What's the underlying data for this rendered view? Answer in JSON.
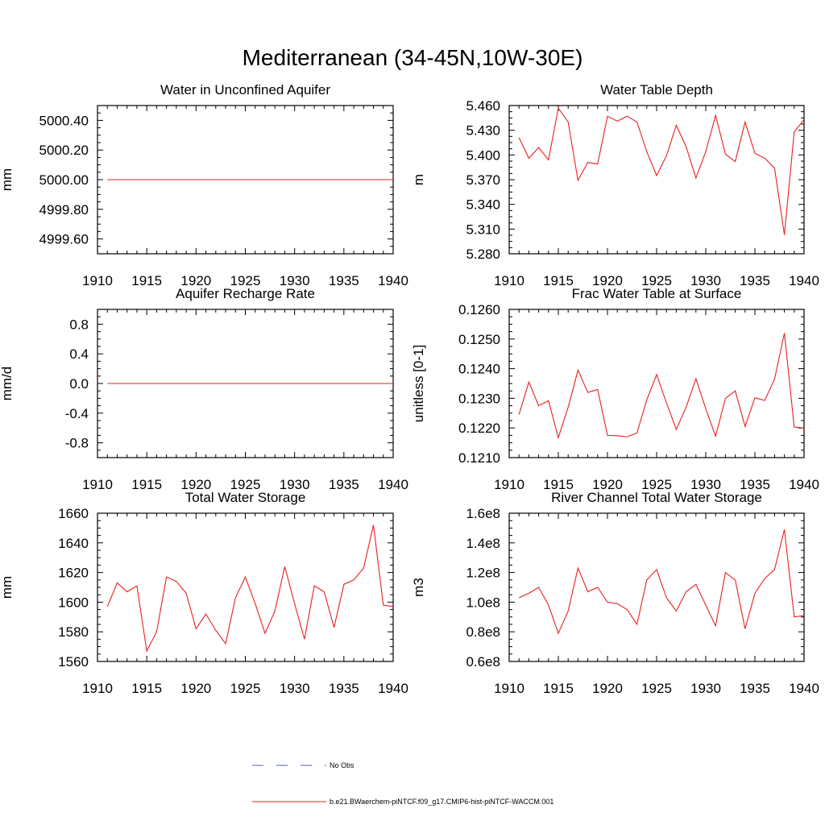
{
  "figure_title": "Mediterranean (34-45N,10W-30E)",
  "legend": [
    {
      "label": "No Obs",
      "color": "#4a5fc4",
      "style": "dashed"
    },
    {
      "label": "b.e21.BWaerchem-piNTCF.f09_g17.CMIP6-hist-piNTCF-WACCM.001",
      "color": "#e8201e",
      "style": "solid"
    }
  ],
  "chart_data": [
    {
      "type": "line",
      "title": "Water in Unconfined Aquifer",
      "ylabel": "mm",
      "xlim": [
        1910,
        1940
      ],
      "ylim": [
        4999.5,
        5000.5
      ],
      "xticks": [
        1910,
        1915,
        1920,
        1925,
        1930,
        1935,
        1940
      ],
      "xtick_labels": [
        "1910",
        "1915",
        "1920",
        "1925",
        "1930",
        "1935",
        "1940"
      ],
      "yticks": [
        4999.6,
        4999.8,
        5000.0,
        5000.2,
        5000.4
      ],
      "ytick_labels": [
        "4999.60",
        "4999.80",
        "5000.00",
        "5000.20",
        "5000.40"
      ],
      "x": [
        1911,
        1912,
        1913,
        1914,
        1915,
        1916,
        1917,
        1918,
        1919,
        1920,
        1921,
        1922,
        1923,
        1924,
        1925,
        1926,
        1927,
        1928,
        1929,
        1930,
        1931,
        1932,
        1933,
        1934,
        1935,
        1936,
        1937,
        1938,
        1939,
        1940
      ],
      "series": [
        {
          "color": "#e8201e",
          "values": [
            5000,
            5000,
            5000,
            5000,
            5000,
            5000,
            5000,
            5000,
            5000,
            5000,
            5000,
            5000,
            5000,
            5000,
            5000,
            5000,
            5000,
            5000,
            5000,
            5000,
            5000,
            5000,
            5000,
            5000,
            5000,
            5000,
            5000,
            5000,
            5000,
            5000
          ]
        }
      ]
    },
    {
      "type": "line",
      "title": "Water Table Depth",
      "ylabel": "m",
      "xlim": [
        1910,
        1940
      ],
      "ylim": [
        5.28,
        5.46
      ],
      "xticks": [
        1910,
        1915,
        1920,
        1925,
        1930,
        1935,
        1940
      ],
      "xtick_labels": [
        "1910",
        "1915",
        "1920",
        "1925",
        "1930",
        "1935",
        "1940"
      ],
      "yticks": [
        5.28,
        5.31,
        5.34,
        5.37,
        5.4,
        5.43,
        5.46
      ],
      "ytick_labels": [
        "5.280",
        "5.310",
        "5.340",
        "5.370",
        "5.400",
        "5.430",
        "5.460"
      ],
      "x": [
        1911,
        1912,
        1913,
        1914,
        1915,
        1916,
        1917,
        1918,
        1919,
        1920,
        1921,
        1922,
        1923,
        1924,
        1925,
        1926,
        1927,
        1928,
        1929,
        1930,
        1931,
        1932,
        1933,
        1934,
        1935,
        1936,
        1937,
        1938,
        1939,
        1940
      ],
      "series": [
        {
          "color": "#e8201e",
          "values": [
            5.421,
            5.396,
            5.409,
            5.394,
            5.457,
            5.44,
            5.369,
            5.391,
            5.389,
            5.447,
            5.441,
            5.447,
            5.44,
            5.404,
            5.375,
            5.399,
            5.436,
            5.41,
            5.372,
            5.404,
            5.448,
            5.401,
            5.392,
            5.44,
            5.402,
            5.396,
            5.384,
            5.303,
            5.428,
            5.443
          ]
        }
      ]
    },
    {
      "type": "line",
      "title": "Aquifer Recharge Rate",
      "ylabel": "mm/d",
      "xlim": [
        1910,
        1940
      ],
      "ylim": [
        -1.0,
        1.0
      ],
      "xticks": [
        1910,
        1915,
        1920,
        1925,
        1930,
        1935,
        1940
      ],
      "xtick_labels": [
        "1910",
        "1915",
        "1920",
        "1925",
        "1930",
        "1935",
        "1940"
      ],
      "yticks": [
        -0.8,
        -0.4,
        0.0,
        0.4,
        0.8
      ],
      "ytick_labels": [
        "-0.8",
        "-0.4",
        "0.0",
        "0.4",
        "0.8"
      ],
      "x": [
        1911,
        1912,
        1913,
        1914,
        1915,
        1916,
        1917,
        1918,
        1919,
        1920,
        1921,
        1922,
        1923,
        1924,
        1925,
        1926,
        1927,
        1928,
        1929,
        1930,
        1931,
        1932,
        1933,
        1934,
        1935,
        1936,
        1937,
        1938,
        1939,
        1940
      ],
      "series": [
        {
          "color": "#e8201e",
          "values": [
            0,
            0,
            0,
            0,
            0,
            0,
            0,
            0,
            0,
            0,
            0,
            0,
            0,
            0,
            0,
            0,
            0,
            0,
            0,
            0,
            0,
            0,
            0,
            0,
            0,
            0,
            0,
            0,
            0,
            0
          ]
        }
      ]
    },
    {
      "type": "line",
      "title": "Frac Water Table at Surface",
      "ylabel": "unitless [0-1]",
      "xlim": [
        1910,
        1940
      ],
      "ylim": [
        0.121,
        0.126
      ],
      "xticks": [
        1910,
        1915,
        1920,
        1925,
        1930,
        1935,
        1940
      ],
      "xtick_labels": [
        "1910",
        "1915",
        "1920",
        "1925",
        "1930",
        "1935",
        "1940"
      ],
      "yticks": [
        0.121,
        0.122,
        0.123,
        0.124,
        0.125,
        0.126
      ],
      "ytick_labels": [
        "0.1210",
        "0.1220",
        "0.1230",
        "0.1240",
        "0.1250",
        "0.1260"
      ],
      "x": [
        1911,
        1912,
        1913,
        1914,
        1915,
        1916,
        1917,
        1918,
        1919,
        1920,
        1921,
        1922,
        1923,
        1924,
        1925,
        1926,
        1927,
        1928,
        1929,
        1930,
        1931,
        1932,
        1933,
        1934,
        1935,
        1936,
        1937,
        1938,
        1939,
        1940
      ],
      "series": [
        {
          "color": "#e8201e",
          "values": [
            0.12245,
            0.12355,
            0.12275,
            0.12292,
            0.12167,
            0.1227,
            0.12395,
            0.1232,
            0.1233,
            0.12175,
            0.12174,
            0.1217,
            0.12183,
            0.12295,
            0.1238,
            0.12285,
            0.12195,
            0.1227,
            0.12366,
            0.12265,
            0.12172,
            0.123,
            0.12325,
            0.12205,
            0.12302,
            0.12293,
            0.12365,
            0.1252,
            0.12203,
            0.122
          ]
        }
      ]
    },
    {
      "type": "line",
      "title": "Total Water Storage",
      "ylabel": "mm",
      "xlim": [
        1910,
        1940
      ],
      "ylim": [
        1560,
        1660
      ],
      "xticks": [
        1910,
        1915,
        1920,
        1925,
        1930,
        1935,
        1940
      ],
      "xtick_labels": [
        "1910",
        "1915",
        "1920",
        "1925",
        "1930",
        "1935",
        "1940"
      ],
      "yticks": [
        1560,
        1580,
        1600,
        1620,
        1640,
        1660
      ],
      "ytick_labels": [
        "1560",
        "1580",
        "1600",
        "1620",
        "1640",
        "1660"
      ],
      "x": [
        1911,
        1912,
        1913,
        1914,
        1915,
        1916,
        1917,
        1918,
        1919,
        1920,
        1921,
        1922,
        1923,
        1924,
        1925,
        1926,
        1927,
        1928,
        1929,
        1930,
        1931,
        1932,
        1933,
        1934,
        1935,
        1936,
        1937,
        1938,
        1939,
        1940
      ],
      "series": [
        {
          "color": "#e8201e",
          "values": [
            1597,
            1613,
            1607,
            1611,
            1567,
            1580,
            1617,
            1614,
            1606,
            1582,
            1592,
            1581,
            1572,
            1603,
            1617,
            1599,
            1579,
            1594,
            1624,
            1599,
            1575,
            1611,
            1607,
            1583,
            1612,
            1615,
            1623,
            1652,
            1598,
            1597
          ]
        }
      ]
    },
    {
      "type": "line",
      "title": "River Channel Total Water Storage",
      "ylabel": "m3",
      "xlim": [
        1910,
        1940
      ],
      "ylim": [
        60000000.0,
        160000000.0
      ],
      "xticks": [
        1910,
        1915,
        1920,
        1925,
        1930,
        1935,
        1940
      ],
      "xtick_labels": [
        "1910",
        "1915",
        "1920",
        "1925",
        "1930",
        "1935",
        "1940"
      ],
      "yticks": [
        60000000.0,
        80000000.0,
        100000000.0,
        120000000.0,
        140000000.0,
        160000000.0
      ],
      "ytick_labels": [
        "0.6e8",
        "0.8e8",
        "1.0e8",
        "1.2e8",
        "1.4e8",
        "1.6e8"
      ],
      "x": [
        1911,
        1912,
        1913,
        1914,
        1915,
        1916,
        1917,
        1918,
        1919,
        1920,
        1921,
        1922,
        1923,
        1924,
        1925,
        1926,
        1927,
        1928,
        1929,
        1930,
        1931,
        1932,
        1933,
        1934,
        1935,
        1936,
        1937,
        1938,
        1939,
        1940
      ],
      "series": [
        {
          "color": "#e8201e",
          "values": [
            103000000.0,
            106000000.0,
            110000000.0,
            98000000.0,
            79000000.0,
            94000000.0,
            123000000.0,
            107000000.0,
            110000000.0,
            100000000.0,
            99000000.0,
            95000000.0,
            85000000.0,
            115000000.0,
            122000000.0,
            103000000.0,
            94000000.0,
            107000000.0,
            112000000.0,
            98000000.0,
            84000000.0,
            120000000.0,
            115000000.0,
            82000000.0,
            106000000.0,
            116000000.0,
            122000000.0,
            149000000.0,
            90000000.0,
            91000000.0
          ]
        }
      ]
    }
  ]
}
